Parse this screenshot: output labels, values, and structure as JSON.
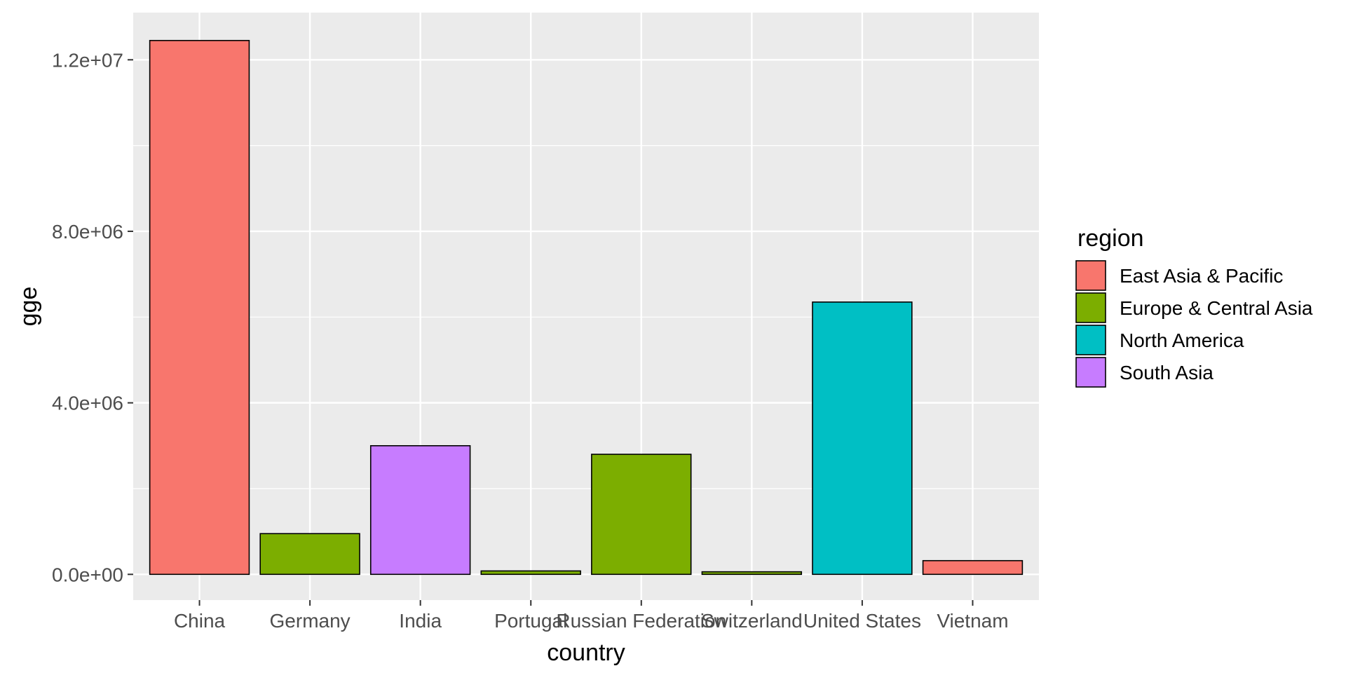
{
  "chart_data": {
    "type": "bar",
    "xlabel": "country",
    "ylabel": "gge",
    "categories": [
      "China",
      "Germany",
      "India",
      "Portugal",
      "Russian Federation",
      "Switzerland",
      "United States",
      "Vietnam"
    ],
    "values": [
      12450000,
      950000,
      3000000,
      80000,
      2800000,
      60000,
      6350000,
      320000
    ],
    "bar_regions": [
      "East Asia & Pacific",
      "Europe & Central Asia",
      "South Asia",
      "Europe & Central Asia",
      "Europe & Central Asia",
      "Europe & Central Asia",
      "North America",
      "East Asia & Pacific"
    ],
    "ylim": [
      -600000,
      13100000
    ],
    "y_ticks": [
      0,
      4000000,
      8000000,
      12000000
    ],
    "y_tick_labels": [
      "0.0e+00",
      "4.0e+06",
      "8.0e+06",
      "1.2e+07"
    ],
    "grid": true,
    "legend": {
      "title": "region",
      "placement": "right",
      "entries": [
        {
          "label": "East Asia & Pacific",
          "color": "#F8766D"
        },
        {
          "label": "Europe & Central Asia",
          "color": "#7CAE00"
        },
        {
          "label": "North America",
          "color": "#00BFC4"
        },
        {
          "label": "South Asia",
          "color": "#C77CFF"
        }
      ]
    },
    "colors": {
      "panel_background": "#EBEBEB",
      "grid": "#FFFFFF",
      "bar_outline": "#000000",
      "tick_text": "#4D4D4D"
    }
  }
}
